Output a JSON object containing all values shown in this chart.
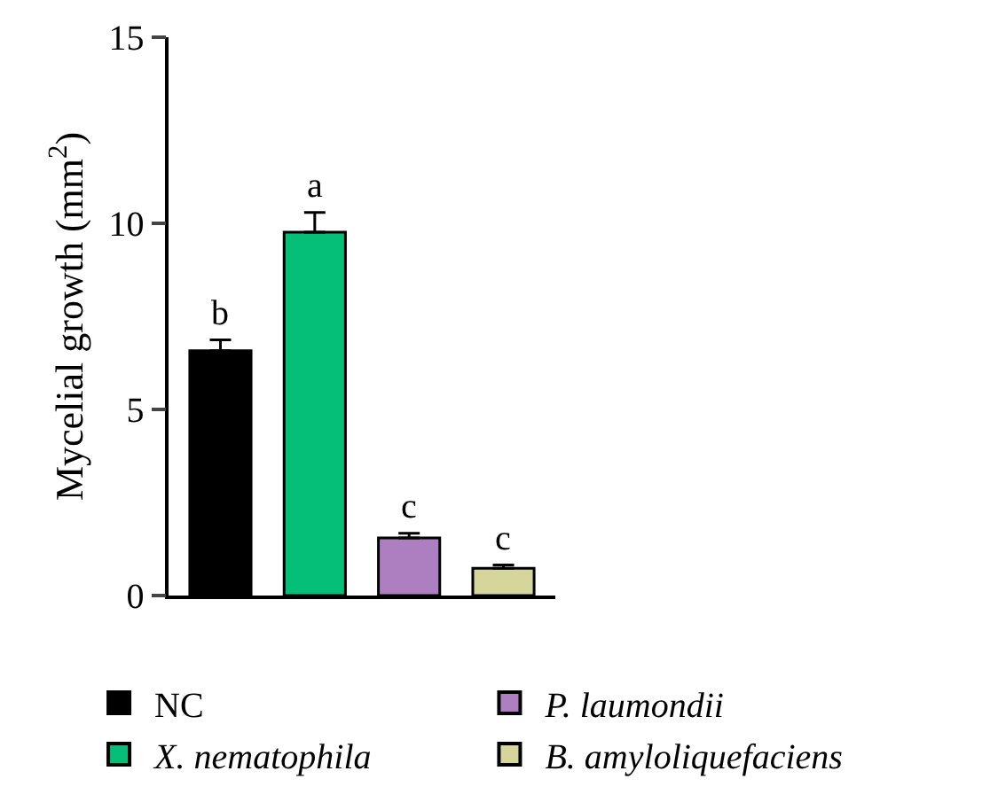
{
  "chart_data": {
    "type": "bar",
    "ylabel": "Mycelial growth (mm$^{2}$)",
    "categories": [
      null,
      null,
      null,
      null
    ],
    "series": [
      {
        "name": "NC",
        "color": "#000000",
        "values": [
          6.58,
          null,
          null,
          null
        ],
        "errors": [
          0.29,
          null,
          null,
          null
        ],
        "value_labels": [
          "b",
          null,
          null,
          null
        ]
      },
      {
        "name": "X. nematophila",
        "color": "#05be78",
        "values": [
          null,
          9.76,
          null,
          null
        ],
        "errors": [
          null,
          0.53,
          null,
          null
        ],
        "value_labels": [
          null,
          "a",
          null,
          null
        ]
      },
      {
        "name": "P. laumondii",
        "color": "#ae7fc0",
        "values": [
          null,
          null,
          1.55,
          null
        ],
        "errors": [
          null,
          null,
          0.12,
          null
        ],
        "value_labels": [
          null,
          null,
          "c",
          null
        ]
      },
      {
        "name": "B. amyloliquefaciens",
        "color": "#d6d69c",
        "values": [
          null,
          null,
          null,
          0.73
        ],
        "errors": [
          null,
          null,
          null,
          0.09
        ],
        "value_labels": [
          null,
          null,
          null,
          "c"
        ]
      }
    ],
    "ylim": [
      0,
      15
    ],
    "yticks": [
      0,
      5,
      10,
      15
    ],
    "legend": "bottom",
    "tick_labels": "y"
  }
}
